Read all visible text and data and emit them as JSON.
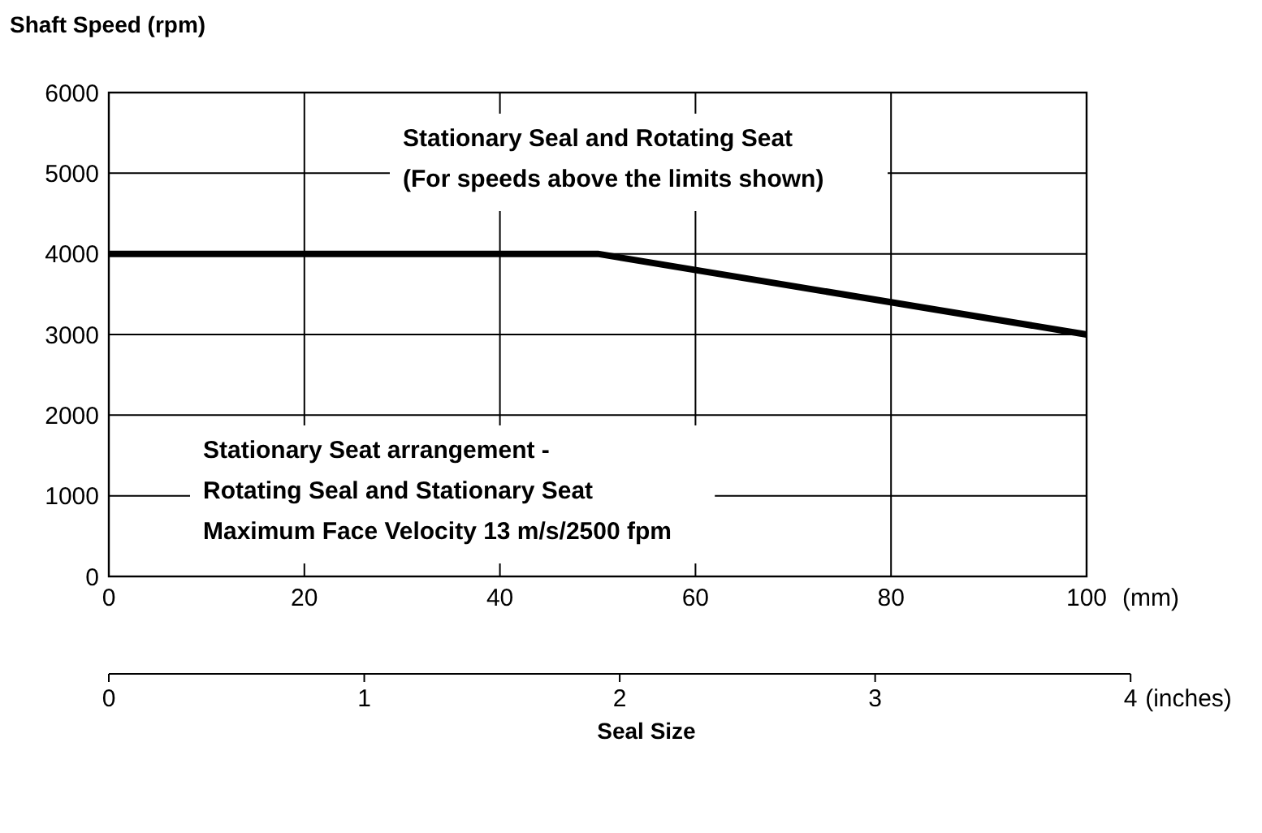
{
  "chart_data": {
    "type": "line",
    "xlabel": "Seal Size",
    "ylabel": "Shaft Speed (rpm)",
    "x2label": "(inches)",
    "x": [
      0,
      50,
      100
    ],
    "series": [
      {
        "color": "#000000",
        "values": [
          4000,
          4000,
          3000
        ]
      }
    ],
    "xlim": [
      0,
      100
    ],
    "xticks": [
      0,
      20,
      40,
      60,
      80,
      100
    ],
    "x2lim": [
      0,
      4
    ],
    "x2ticks": [
      0,
      1,
      2,
      3,
      4
    ],
    "ylim": [
      0,
      6000
    ],
    "yticks": [
      0,
      1000,
      2000,
      3000,
      4000,
      5000,
      6000
    ],
    "grid": true,
    "line_style": "solid",
    "annotations": [
      "(mm)",
      "Stationary Seal and Rotating Seat\n(For speeds above the limits shown)",
      "Stationary Seat arrangement -\nRotating Seal and Stationary Seat\nMaximum Face Velocity 13 m/s/2500 fpm"
    ]
  }
}
